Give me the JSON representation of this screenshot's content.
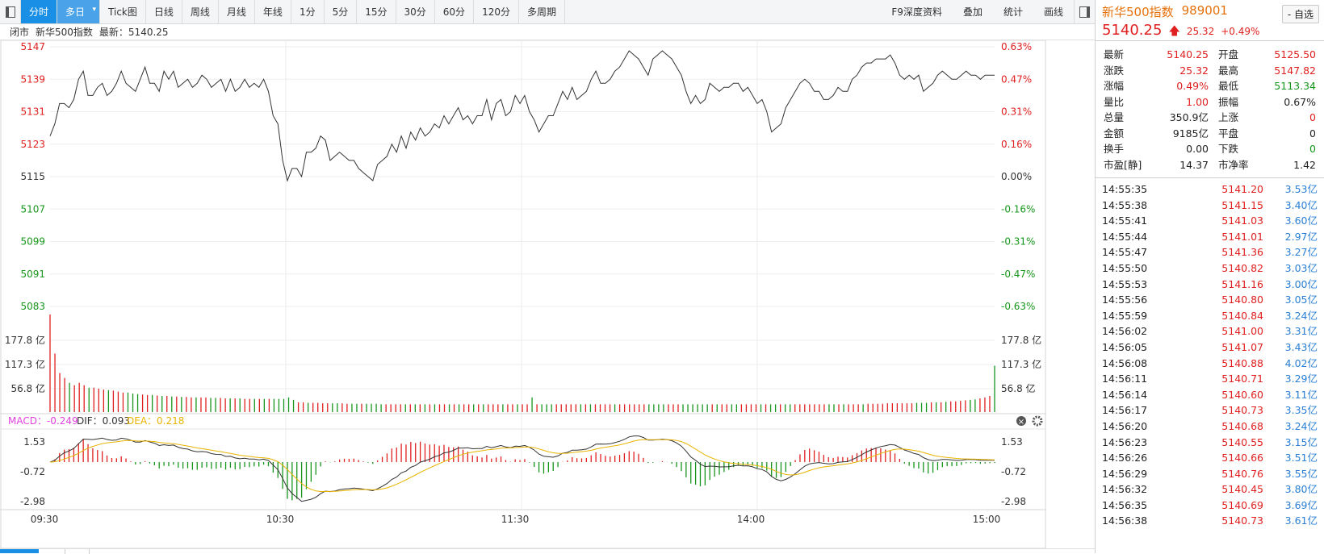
{
  "toolbar": {
    "tabs": [
      "分时",
      "多日",
      "Tick图",
      "日线",
      "周线",
      "月线",
      "年线",
      "1分",
      "5分",
      "15分",
      "30分",
      "60分",
      "120分",
      "多周期"
    ],
    "right": [
      "F9深度资料",
      "叠加",
      "统计",
      "画线"
    ],
    "dropdown": "▾"
  },
  "info": {
    "status": "闭市",
    "name": "新华500指数",
    "latest": "最新：5140.25"
  },
  "price_axis": {
    "left": [
      "5147",
      "5139",
      "5131",
      "5123",
      "5115",
      "5107",
      "5099",
      "5091",
      "5083"
    ],
    "right": [
      "0.63%",
      "0.47%",
      "0.31%",
      "0.16%",
      "0.00%",
      "-0.16%",
      "-0.31%",
      "-0.47%",
      "-0.63%"
    ]
  },
  "vol_axis": [
    "177.8 亿",
    "117.3 亿",
    "56.8 亿"
  ],
  "macd": {
    "macd_label": "MACD：-0.249",
    "dif_label": "DIF：0.093",
    "dea_label": "DEA：0.218",
    "ticks": [
      "1.53",
      "-0.72",
      "-2.98"
    ]
  },
  "time_axis": [
    "09:30",
    "10:30",
    "11:30",
    "14:00",
    "15:00"
  ],
  "colors": {
    "up": "#e02020",
    "down": "#17961c",
    "price_line": "#333333",
    "dea": "#e8b400",
    "macd_pink": "#e040e0",
    "accent": "#1a8fe6"
  },
  "quote": {
    "name": "新华500指数",
    "code": "989001",
    "price": "5140.25",
    "change": "25.32",
    "pct": "+0.49%",
    "select": "- 自选",
    "rows": [
      [
        "最新",
        "5140.25",
        "red",
        "开盘",
        "5125.50",
        "red"
      ],
      [
        "涨跌",
        "25.32",
        "red",
        "最高",
        "5147.82",
        "red"
      ],
      [
        "涨幅",
        "0.49%",
        "red",
        "最低",
        "5113.34",
        "green"
      ],
      [
        "量比",
        "1.00",
        "red",
        "振幅",
        "0.67%",
        "blk"
      ],
      [
        "总量",
        "350.9亿",
        "blk",
        "上涨",
        "0",
        "red"
      ],
      [
        "金额",
        "9185亿",
        "blk",
        "平盘",
        "0",
        "blk"
      ],
      [
        "换手",
        "0.00",
        "blk",
        "下跌",
        "0",
        "green"
      ],
      [
        "市盈[静]",
        "14.37",
        "blk",
        "市净率",
        "1.42",
        "blk"
      ]
    ]
  },
  "ticks_list": [
    [
      "14:55:35",
      "5141.20",
      "3.53亿"
    ],
    [
      "14:55:38",
      "5141.15",
      "3.40亿"
    ],
    [
      "14:55:41",
      "5141.03",
      "3.60亿"
    ],
    [
      "14:55:44",
      "5141.01",
      "2.97亿"
    ],
    [
      "14:55:47",
      "5141.36",
      "3.27亿"
    ],
    [
      "14:55:50",
      "5140.82",
      "3.03亿"
    ],
    [
      "14:55:53",
      "5141.16",
      "3.00亿"
    ],
    [
      "14:55:56",
      "5140.80",
      "3.05亿"
    ],
    [
      "14:55:59",
      "5140.84",
      "3.24亿"
    ],
    [
      "14:56:02",
      "5141.00",
      "3.31亿"
    ],
    [
      "14:56:05",
      "5141.07",
      "3.43亿"
    ],
    [
      "14:56:08",
      "5140.88",
      "4.02亿"
    ],
    [
      "14:56:11",
      "5140.71",
      "3.29亿"
    ],
    [
      "14:56:14",
      "5140.60",
      "3.11亿"
    ],
    [
      "14:56:17",
      "5140.73",
      "3.35亿"
    ],
    [
      "14:56:20",
      "5140.68",
      "3.24亿"
    ],
    [
      "14:56:23",
      "5140.55",
      "3.15亿"
    ],
    [
      "14:56:26",
      "5140.66",
      "3.51亿"
    ],
    [
      "14:56:29",
      "5140.76",
      "3.55亿"
    ],
    [
      "14:56:32",
      "5140.45",
      "3.80亿"
    ],
    [
      "14:56:35",
      "5140.69",
      "3.69亿"
    ],
    [
      "14:56:38",
      "5140.73",
      "3.61亿"
    ]
  ],
  "chart_data": {
    "type": "line",
    "prev_close": 5115,
    "price": [
      5125,
      5128,
      5133,
      5133,
      5132,
      5134,
      5139,
      5141,
      5135,
      5135,
      5137,
      5138,
      5135,
      5136,
      5138,
      5141,
      5138,
      5137,
      5136,
      5139,
      5142,
      5138,
      5138,
      5136,
      5141,
      5139,
      5141,
      5137,
      5138,
      5139,
      5137,
      5138,
      5140,
      5139,
      5137,
      5138,
      5139,
      5136,
      5139,
      5136,
      5137,
      5139,
      5137,
      5138,
      5137,
      5139,
      5136,
      5130,
      5128,
      5119,
      5114,
      5117,
      5117,
      5115,
      5121,
      5121,
      5122,
      5125,
      5124,
      5119,
      5120,
      5121,
      5120,
      5119,
      5119,
      5117,
      5116,
      5115,
      5114,
      5118,
      5119,
      5120,
      5123,
      5121,
      5125,
      5122,
      5126,
      5124,
      5127,
      5125,
      5126,
      5128,
      5127,
      5130,
      5128,
      5130,
      5132,
      5129,
      5130,
      5128,
      5130,
      5130,
      5134,
      5129,
      5133,
      5134,
      5130,
      5131,
      5135,
      5133,
      5135,
      5131,
      5129,
      5126,
      5128,
      5130,
      5130,
      5133,
      5136,
      5134,
      5137,
      5134,
      5135,
      5136,
      5139,
      5141,
      5138,
      5138,
      5139,
      5141,
      5142,
      5144,
      5146,
      5145,
      5144,
      5142,
      5140,
      5144,
      5145,
      5146,
      5145,
      5144,
      5142,
      5140,
      5136,
      5133,
      5135,
      5133,
      5134,
      5138,
      5137,
      5136,
      5137,
      5137,
      5138,
      5138,
      5136,
      5137,
      5135,
      5133,
      5134,
      5131,
      5126,
      5127,
      5128,
      5132,
      5134,
      5136,
      5138,
      5139,
      5138,
      5136,
      5136,
      5134,
      5134,
      5135,
      5137,
      5136,
      5136,
      5139,
      5140,
      5142,
      5143,
      5143,
      5144,
      5144,
      5144,
      5145,
      5143,
      5140,
      5139,
      5140,
      5139,
      5140,
      5136,
      5137,
      5138,
      5140,
      5141,
      5140,
      5139,
      5139,
      5140,
      5141,
      5140,
      5140,
      5139,
      5140,
      5140,
      5140
    ],
    "volume": [
      200,
      120,
      80,
      70,
      60,
      55,
      60,
      55,
      50,
      50,
      48,
      46,
      45,
      44,
      42,
      40,
      40,
      38,
      37,
      36,
      35,
      35,
      34,
      33,
      33,
      32,
      32,
      31,
      31,
      30,
      30,
      30,
      30,
      29,
      29,
      29,
      28,
      28,
      28,
      28,
      27,
      27,
      27,
      27,
      27,
      27,
      27,
      27,
      27,
      30,
      25,
      20,
      20,
      19,
      19,
      19,
      18,
      18,
      18,
      18,
      18,
      17,
      17,
      17,
      17,
      17,
      17,
      17,
      16,
      16,
      16,
      16,
      16,
      16,
      16,
      16,
      16,
      16,
      16,
      16,
      16,
      16,
      16,
      16,
      16,
      16,
      16,
      16,
      16,
      16,
      16,
      16,
      16,
      16,
      16,
      16,
      16,
      16,
      16,
      30,
      16,
      16,
      16,
      16,
      16,
      16,
      16,
      16,
      16,
      16,
      16,
      16,
      16,
      16,
      16,
      16,
      16,
      16,
      16,
      16,
      16,
      16,
      16,
      16,
      16,
      16,
      16,
      16,
      16,
      16,
      16,
      16,
      16,
      16,
      16,
      16,
      16,
      16,
      16,
      16,
      16,
      16,
      16,
      16,
      16,
      16,
      16,
      16,
      16,
      16,
      16,
      16,
      16,
      16,
      16,
      16,
      16,
      16,
      16,
      16,
      16,
      16,
      16,
      16,
      16,
      16,
      16,
      16,
      17,
      17,
      17,
      17,
      18,
      18,
      18,
      18,
      18,
      18,
      19,
      19,
      19,
      20,
      20,
      20,
      21,
      22,
      22,
      23,
      24,
      25,
      26,
      28,
      30,
      33,
      95
    ],
    "vol_axis_max": 200,
    "price_range": [
      5083,
      5147
    ],
    "macd_range": [
      -3.6,
      2.5
    ],
    "macd_reference": [
      1.53,
      -0.72,
      -2.98
    ]
  }
}
